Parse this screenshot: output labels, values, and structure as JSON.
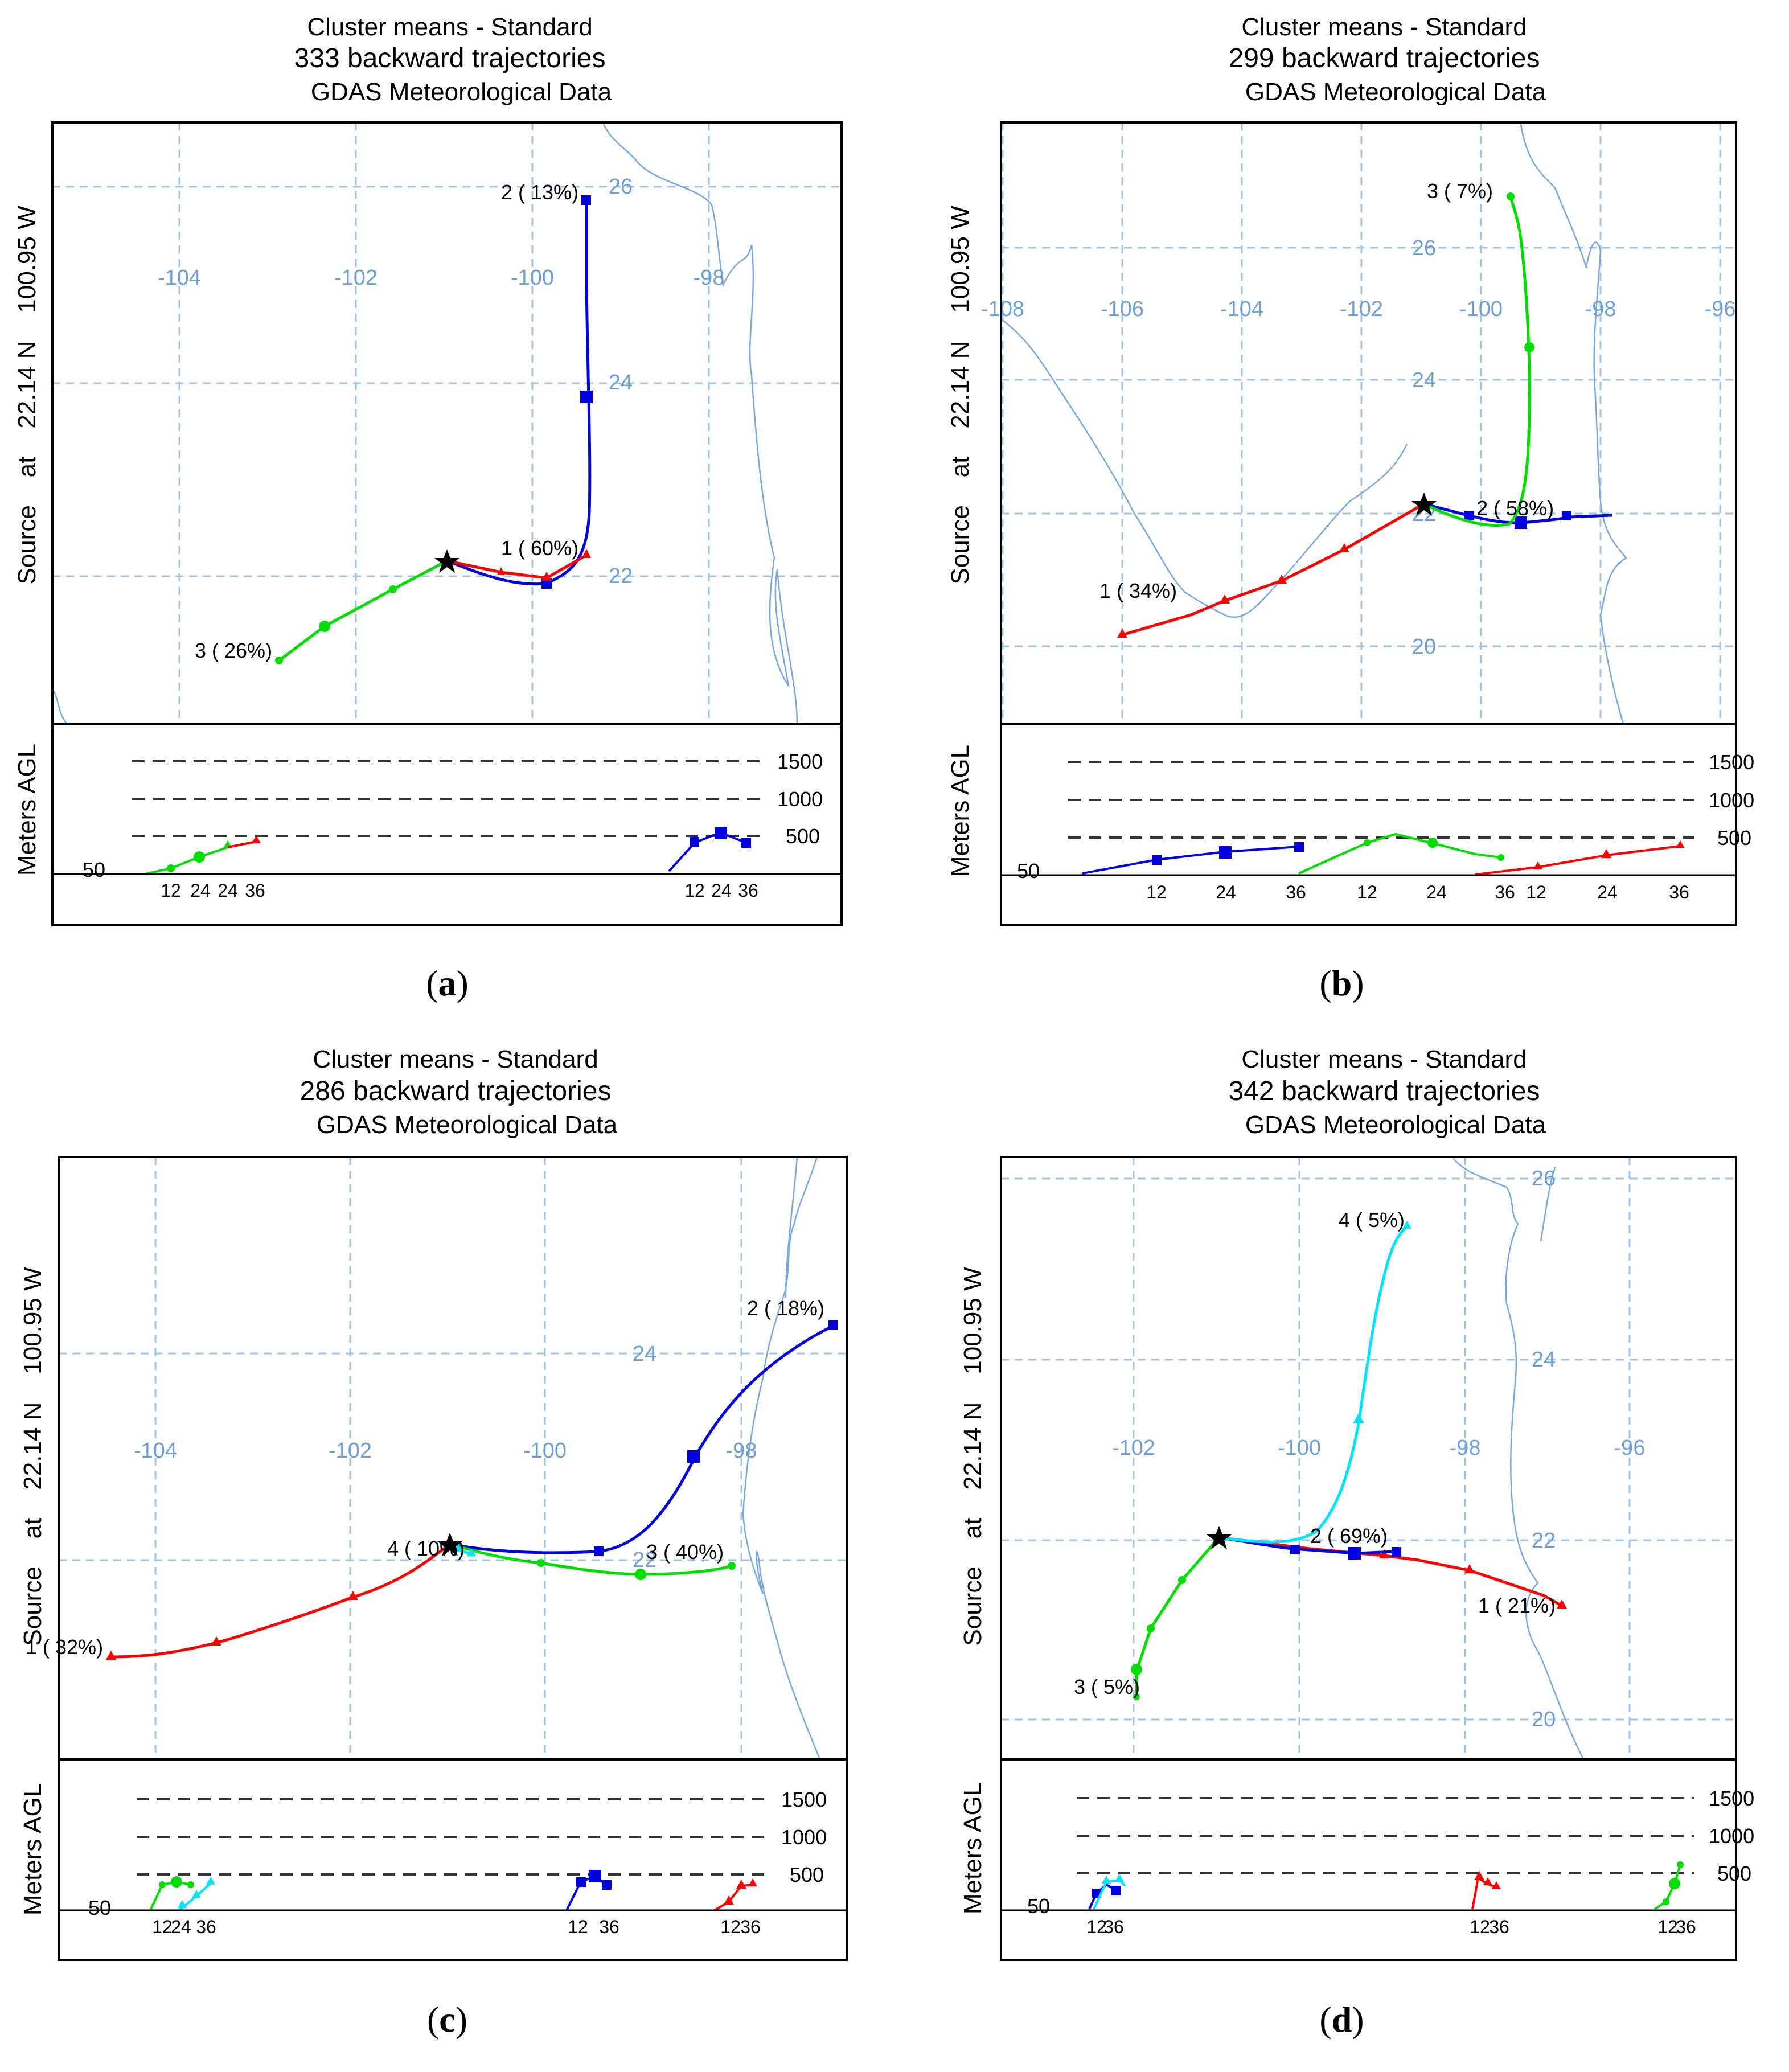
{
  "panels": {
    "a": {
      "caption_letter": "a",
      "title1": "Cluster means - Standard",
      "title2": "333 backward trajectories",
      "title3": "GDAS Meteorological Data",
      "y_axis": "Source    at    22.14 N    100.95 W",
      "lon_labels": [
        "-104",
        "-102",
        "-100",
        "-98"
      ],
      "lat_labels": [
        "26",
        "24",
        "22"
      ],
      "clusters": [
        {
          "label": "1 ( 60%)",
          "color": "#ff0000",
          "marker": "triangle"
        },
        {
          "label": "2 ( 13%)",
          "color": "#0000e0",
          "marker": "square"
        },
        {
          "label": "3 ( 26%)",
          "color": "#00dd00",
          "marker": "circle"
        }
      ],
      "height_axis_label": "Meters AGL",
      "height_levels": [
        "1500",
        "1000",
        "500"
      ],
      "height_base": "50",
      "hour_ticks": [
        "12",
        "24",
        "36"
      ]
    },
    "b": {
      "caption_letter": "b",
      "title1": "Cluster means - Standard",
      "title2": "299 backward trajectories",
      "title3": "GDAS Meteorological Data",
      "y_axis": "Source    at    22.14 N    100.95 W",
      "lon_labels": [
        "-108",
        "-106",
        "-104",
        "-102",
        "-100",
        "-98",
        "-96"
      ],
      "lat_labels": [
        "26",
        "24",
        "22",
        "20"
      ],
      "clusters": [
        {
          "label": "1 ( 34%)",
          "color": "#ff0000",
          "marker": "triangle"
        },
        {
          "label": "2 ( 58%)",
          "color": "#0000e0",
          "marker": "square"
        },
        {
          "label": "3 (  7%)",
          "color": "#00dd00",
          "marker": "circle"
        }
      ],
      "height_axis_label": "Meters AGL",
      "height_levels": [
        "1500",
        "1000",
        "500"
      ],
      "height_base": "50",
      "hour_ticks": [
        "12",
        "24",
        "36"
      ]
    },
    "c": {
      "caption_letter": "c",
      "title1": "Cluster means - Standard",
      "title2": "286 backward trajectories",
      "title3": "GDAS Meteorological Data",
      "y_axis": "Source    at    22.14 N    100.95 W",
      "lon_labels": [
        "-104",
        "-102",
        "-100",
        "-98"
      ],
      "lat_labels": [
        "24",
        "22"
      ],
      "clusters": [
        {
          "label": "1 ( 32%)",
          "color": "#ff0000",
          "marker": "triangle"
        },
        {
          "label": "2 ( 18%)",
          "color": "#0000e0",
          "marker": "square"
        },
        {
          "label": "3 ( 40%)",
          "color": "#00dd00",
          "marker": "circle"
        },
        {
          "label": "4 ( 10%)",
          "color": "#00e5ff",
          "marker": "triangle"
        }
      ],
      "height_axis_label": "Meters AGL",
      "height_levels": [
        "1500",
        "1000",
        "500"
      ],
      "height_base": "50",
      "hour_ticks": [
        "12",
        "24",
        "36"
      ]
    },
    "d": {
      "caption_letter": "d",
      "title1": "Cluster means - Standard",
      "title2": "342 backward trajectories",
      "title3": "GDAS Meteorological Data",
      "y_axis": "Source    at    22.14 N    100.95 W",
      "lon_labels": [
        "-102",
        "-100",
        "-98",
        "-96"
      ],
      "lat_labels": [
        "26",
        "24",
        "22",
        "20"
      ],
      "clusters": [
        {
          "label": "1 ( 21%)",
          "color": "#ff0000",
          "marker": "triangle"
        },
        {
          "label": "2 ( 69%)",
          "color": "#0000e0",
          "marker": "square"
        },
        {
          "label": "3 (  5%)",
          "color": "#00dd00",
          "marker": "circle"
        },
        {
          "label": "4 (  5%)",
          "color": "#00e5ff",
          "marker": "triangle"
        }
      ],
      "height_axis_label": "Meters AGL",
      "height_levels": [
        "1500",
        "1000",
        "500"
      ],
      "height_base": "50",
      "hour_ticks": [
        "12",
        "24",
        "36"
      ]
    }
  },
  "colors": {
    "cluster_red": "#ff0000",
    "cluster_blue": "#0000e0",
    "cluster_green": "#00dd00",
    "cluster_cyan": "#00e5ff",
    "grid": "#9fc4e6",
    "coastline": "#7aa8d8"
  }
}
